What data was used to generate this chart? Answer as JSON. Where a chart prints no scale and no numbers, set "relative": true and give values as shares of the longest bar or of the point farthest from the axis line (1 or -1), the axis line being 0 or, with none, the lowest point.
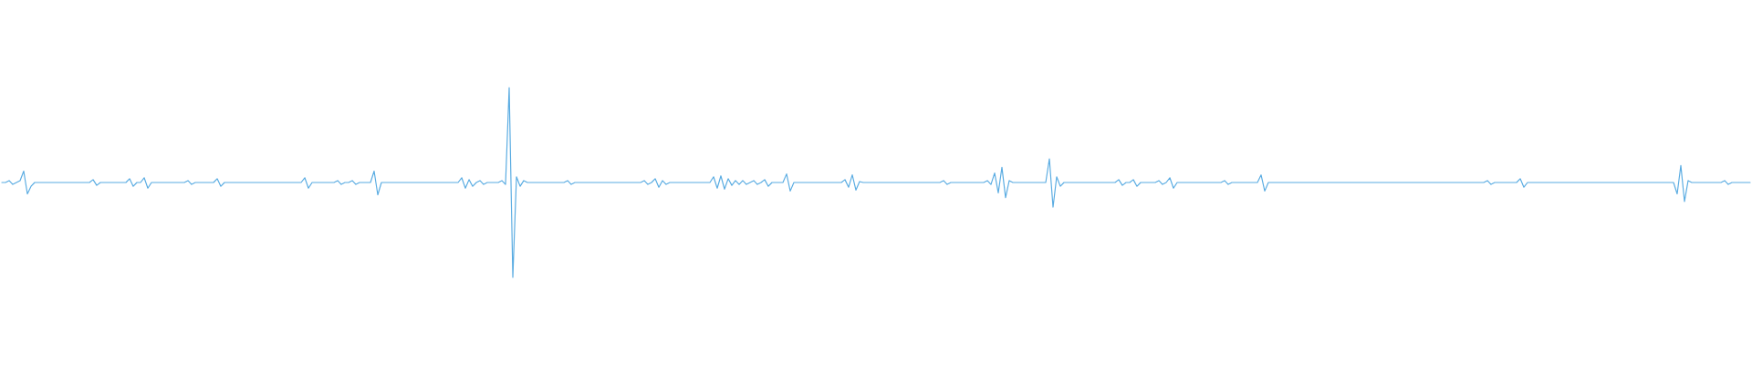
{
  "chart_data": {
    "type": "line",
    "relative": true,
    "color": "#5aace2",
    "categories": [
      null,
      null,
      null,
      null,
      null,
      null,
      null,
      null,
      null,
      null,
      null,
      null,
      null,
      null,
      null,
      null,
      null,
      null,
      null,
      null,
      null,
      null,
      null,
      null,
      null,
      null,
      null,
      null,
      null,
      null,
      null,
      null,
      null,
      null,
      null,
      null,
      null,
      null,
      null,
      null,
      null,
      null,
      null,
      null,
      null,
      null,
      null,
      null,
      null,
      null,
      null,
      null,
      null,
      null,
      null,
      null,
      null,
      null,
      null,
      null,
      null,
      null,
      null,
      null,
      null,
      null,
      null,
      null,
      null,
      null,
      null,
      null,
      null,
      null,
      null,
      null,
      null,
      null,
      null,
      null,
      null,
      null,
      null,
      null,
      null,
      null,
      null,
      null,
      null,
      null,
      null,
      null,
      null,
      null,
      null,
      null,
      null,
      null,
      null,
      null,
      null,
      null,
      null,
      null,
      null,
      null,
      null,
      null,
      null,
      null,
      null,
      null,
      null,
      null,
      null,
      null,
      null,
      null,
      null,
      null,
      null,
      null,
      null,
      null,
      null,
      null,
      null,
      null,
      null,
      null,
      null,
      null,
      null,
      null,
      null,
      null,
      null,
      null,
      null,
      null,
      null,
      null,
      null,
      null,
      null,
      null,
      null,
      null,
      null,
      null,
      null,
      null,
      null,
      null,
      null,
      null,
      null,
      null,
      null,
      null,
      null,
      null,
      null,
      null,
      null,
      null,
      null,
      null,
      null,
      null,
      null,
      null,
      null,
      null,
      null,
      null,
      null,
      null,
      null,
      null,
      null,
      null,
      null,
      null,
      null,
      null,
      null,
      null,
      null,
      null,
      null,
      null,
      null,
      null,
      null,
      null,
      null,
      null,
      null,
      null,
      null,
      null,
      null,
      null,
      null,
      null,
      null,
      null,
      null,
      null,
      null,
      null,
      null,
      null,
      null,
      null,
      null,
      null,
      null,
      null,
      null,
      null,
      null,
      null,
      null,
      null,
      null,
      null,
      null,
      null,
      null,
      null,
      null,
      null,
      null,
      null,
      null,
      null,
      null,
      null,
      null,
      null,
      null,
      null,
      null,
      null,
      null,
      null,
      null,
      null,
      null,
      null,
      null,
      null,
      null,
      null,
      null,
      null,
      null,
      null,
      null,
      null,
      null,
      null,
      null,
      null,
      null,
      null,
      null,
      null,
      null,
      null,
      null,
      null,
      null,
      null,
      null,
      null,
      null,
      null,
      null,
      null,
      null,
      null,
      null,
      null,
      null,
      null,
      null,
      null,
      null,
      null,
      null,
      null,
      null,
      null,
      null,
      null,
      null,
      null,
      null,
      null,
      null,
      null,
      null,
      null,
      null,
      null,
      null,
      null,
      null,
      null,
      null,
      null,
      null,
      null,
      null,
      null,
      null,
      null,
      null,
      null,
      null,
      null,
      null,
      null,
      null,
      null,
      null,
      null,
      null,
      null,
      null,
      null,
      null,
      null,
      null,
      null,
      null,
      null,
      null,
      null,
      null,
      null,
      null,
      null,
      null,
      null,
      null,
      null,
      null,
      null,
      null,
      null,
      null,
      null,
      null,
      null,
      null,
      null,
      null,
      null,
      null,
      null,
      null,
      null,
      null,
      null,
      null,
      null,
      null,
      null,
      null,
      null,
      null,
      null,
      null,
      null,
      null,
      null,
      null,
      null,
      null,
      null,
      null,
      null,
      null,
      null,
      null,
      null,
      null,
      null,
      null,
      null,
      null,
      null,
      null,
      null,
      null,
      null,
      null,
      null,
      null,
      null,
      null,
      null,
      null,
      null,
      null,
      null,
      null,
      null,
      null,
      null,
      null,
      null,
      null,
      null,
      null,
      null,
      null,
      null,
      null,
      null,
      null,
      null,
      null,
      null,
      null,
      null,
      null,
      null,
      null,
      null,
      null,
      null,
      null,
      null,
      null,
      null,
      null,
      null,
      null,
      null,
      null,
      null,
      null,
      null,
      null,
      null,
      null,
      null,
      null,
      null,
      null,
      null,
      null,
      null,
      null,
      null,
      null,
      null,
      null,
      null,
      null,
      null,
      null,
      null,
      null,
      null,
      null,
      null,
      null,
      null,
      null,
      null,
      null,
      null,
      null,
      null
    ],
    "values": [
      0.5,
      0.5,
      0.51,
      0.49,
      0.5,
      0.51,
      0.56,
      0.44,
      0.48,
      0.5,
      0.5,
      0.5,
      0.5,
      0.5,
      0.5,
      0.5,
      0.5,
      0.5,
      0.5,
      0.5,
      0.5,
      0.5,
      0.5,
      0.5,
      0.5,
      0.515,
      0.485,
      0.5,
      0.5,
      0.5,
      0.5,
      0.5,
      0.5,
      0.5,
      0.5,
      0.52,
      0.48,
      0.5,
      0.5,
      0.525,
      0.47,
      0.5,
      0.5,
      0.5,
      0.5,
      0.5,
      0.5,
      0.5,
      0.5,
      0.5,
      0.5,
      0.51,
      0.49,
      0.5,
      0.5,
      0.5,
      0.5,
      0.5,
      0.5,
      0.52,
      0.48,
      0.5,
      0.5,
      0.5,
      0.5,
      0.5,
      0.5,
      0.5,
      0.5,
      0.5,
      0.5,
      0.5,
      0.5,
      0.5,
      0.5,
      0.5,
      0.5,
      0.5,
      0.5,
      0.5,
      0.5,
      0.5,
      0.5,
      0.525,
      0.47,
      0.5,
      0.5,
      0.5,
      0.5,
      0.5,
      0.5,
      0.5,
      0.51,
      0.49,
      0.5,
      0.5,
      0.51,
      0.49,
      0.5,
      0.5,
      0.5,
      0.5,
      0.56,
      0.435,
      0.5,
      0.5,
      0.5,
      0.5,
      0.5,
      0.5,
      0.5,
      0.5,
      0.5,
      0.5,
      0.5,
      0.5,
      0.5,
      0.5,
      0.5,
      0.5,
      0.5,
      0.5,
      0.5,
      0.5,
      0.5,
      0.5,
      0.525,
      0.47,
      0.515,
      0.48,
      0.5,
      0.51,
      0.49,
      0.5,
      0.5,
      0.5,
      0.5,
      0.51,
      0.49,
      1,
      0,
      0.53,
      0.48,
      0.51,
      0.5,
      0.5,
      0.5,
      0.5,
      0.5,
      0.5,
      0.5,
      0.5,
      0.5,
      0.5,
      0.5,
      0.51,
      0.49,
      0.5,
      0.5,
      0.5,
      0.5,
      0.5,
      0.5,
      0.5,
      0.5,
      0.5,
      0.5,
      0.5,
      0.5,
      0.5,
      0.5,
      0.5,
      0.5,
      0.5,
      0.5,
      0.5,
      0.51,
      0.49,
      0.5,
      0.52,
      0.475,
      0.51,
      0.49,
      0.5,
      0.5,
      0.5,
      0.5,
      0.5,
      0.5,
      0.5,
      0.5,
      0.5,
      0.5,
      0.5,
      0.5,
      0.53,
      0.47,
      0.535,
      0.465,
      0.52,
      0.485,
      0.51,
      0.49,
      0.51,
      0.49,
      0.5,
      0.51,
      0.49,
      0.5,
      0.515,
      0.48,
      0.5,
      0.5,
      0.5,
      0.5,
      0.545,
      0.455,
      0.5,
      0.5,
      0.5,
      0.5,
      0.5,
      0.5,
      0.5,
      0.5,
      0.5,
      0.5,
      0.5,
      0.5,
      0.5,
      0.5,
      0.515,
      0.475,
      0.54,
      0.46,
      0.505,
      0.5,
      0.5,
      0.5,
      0.5,
      0.5,
      0.5,
      0.5,
      0.5,
      0.5,
      0.5,
      0.5,
      0.5,
      0.5,
      0.5,
      0.5,
      0.5,
      0.5,
      0.5,
      0.5,
      0.5,
      0.5,
      0.5,
      0.51,
      0.49,
      0.5,
      0.5,
      0.5,
      0.5,
      0.5,
      0.5,
      0.5,
      0.5,
      0.5,
      0.5,
      0.51,
      0.49,
      0.55,
      0.445,
      0.58,
      0.42,
      0.51,
      0.5,
      0.5,
      0.5,
      0.5,
      0.5,
      0.5,
      0.5,
      0.5,
      0.5,
      0.5,
      0.625,
      0.37,
      0.53,
      0.48,
      0.5,
      0.5,
      0.5,
      0.5,
      0.5,
      0.5,
      0.5,
      0.5,
      0.5,
      0.5,
      0.5,
      0.5,
      0.5,
      0.5,
      0.5,
      0.515,
      0.485,
      0.5,
      0.5,
      0.515,
      0.48,
      0.5,
      0.5,
      0.5,
      0.5,
      0.5,
      0.51,
      0.49,
      0.5,
      0.525,
      0.47,
      0.5,
      0.5,
      0.5,
      0.5,
      0.5,
      0.5,
      0.5,
      0.5,
      0.5,
      0.5,
      0.5,
      0.5,
      0.5,
      0.51,
      0.49,
      0.5,
      0.5,
      0.5,
      0.5,
      0.5,
      0.5,
      0.5,
      0.5,
      0.54,
      0.455,
      0.5,
      0.5,
      0.5,
      0.5,
      0.5,
      0.5,
      0.5,
      0.5,
      0.5,
      0.5,
      0.5,
      0.5,
      0.5,
      0.5,
      0.5,
      0.5,
      0.5,
      0.5,
      0.5,
      0.5,
      0.5,
      0.5,
      0.5,
      0.5,
      0.5,
      0.5,
      0.5,
      0.5,
      0.5,
      0.5,
      0.5,
      0.5,
      0.5,
      0.5,
      0.5,
      0.5,
      0.5,
      0.5,
      0.5,
      0.5,
      0.5,
      0.5,
      0.5,
      0.5,
      0.5,
      0.5,
      0.5,
      0.5,
      0.5,
      0.5,
      0.5,
      0.5,
      0.5,
      0.5,
      0.5,
      0.5,
      0.5,
      0.5,
      0.5,
      0.5,
      0.51,
      0.49,
      0.5,
      0.5,
      0.5,
      0.5,
      0.5,
      0.5,
      0.5,
      0.52,
      0.475,
      0.5,
      0.5,
      0.5,
      0.5,
      0.5,
      0.5,
      0.5,
      0.5,
      0.5,
      0.5,
      0.5,
      0.5,
      0.5,
      0.5,
      0.5,
      0.5,
      0.5,
      0.5,
      0.5,
      0.5,
      0.5,
      0.5,
      0.5,
      0.5,
      0.5,
      0.5,
      0.5,
      0.5,
      0.5,
      0.5,
      0.5,
      0.5,
      0.5,
      0.5,
      0.5,
      0.5,
      0.5,
      0.5,
      0.5,
      0.5,
      0.5,
      0.44,
      0.59,
      0.4,
      0.51,
      0.5,
      0.5,
      0.5,
      0.5,
      0.5,
      0.5,
      0.5,
      0.5,
      0.5,
      0.51,
      0.49,
      0.5,
      0.5,
      0.5,
      0.5,
      0.5,
      0.5
    ]
  }
}
